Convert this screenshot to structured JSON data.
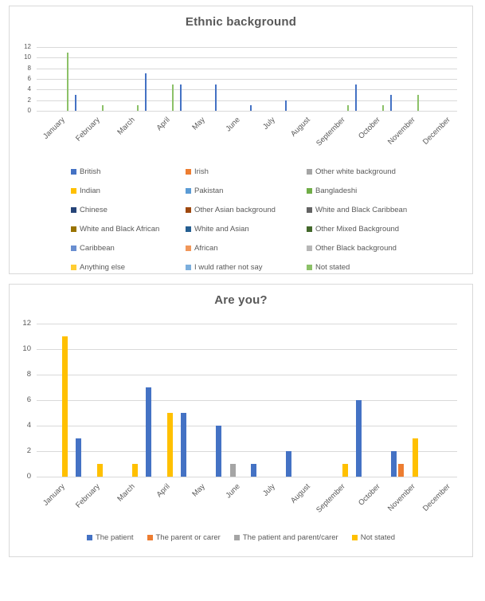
{
  "page": {
    "background": "#ffffff",
    "card_border": "#d9d9d9",
    "grid_color": "#d9d9d9",
    "text_color": "#595959"
  },
  "chart_data": [
    {
      "type": "bar",
      "title": "Ethnic background",
      "categories": [
        "January",
        "February",
        "March",
        "April",
        "May",
        "June",
        "July",
        "August",
        "September",
        "October",
        "November",
        "December"
      ],
      "ylim": [
        0,
        12
      ],
      "yticks": [
        0,
        2,
        4,
        6,
        8,
        10,
        12
      ],
      "grid": true,
      "legend_position": "bottom",
      "legend_columns": 3,
      "series": [
        {
          "name": "British",
          "color": "#4472C4",
          "values": [
            0,
            3,
            0,
            7,
            5,
            5,
            1,
            2,
            0,
            5,
            3,
            0
          ]
        },
        {
          "name": "Irish",
          "color": "#ED7D31",
          "values": [
            0,
            0,
            0,
            0,
            0,
            0,
            0,
            0,
            0,
            0,
            0,
            0
          ]
        },
        {
          "name": "Other white background",
          "color": "#A5A5A5",
          "values": [
            0,
            0,
            0,
            0,
            0,
            0,
            0,
            0,
            0,
            0,
            0,
            0
          ]
        },
        {
          "name": "Indian",
          "color": "#FFC000",
          "values": [
            0,
            0,
            0,
            0,
            0,
            0,
            0,
            0,
            0,
            0,
            0,
            0
          ]
        },
        {
          "name": "Pakistan",
          "color": "#5B9BD5",
          "values": [
            0,
            0,
            0,
            0,
            0,
            0,
            0,
            0,
            0,
            0,
            0,
            0
          ]
        },
        {
          "name": "Bangladeshi",
          "color": "#70AD47",
          "values": [
            0,
            0,
            0,
            0,
            0,
            0,
            0,
            0,
            0,
            0,
            0,
            0
          ]
        },
        {
          "name": "Chinese",
          "color": "#264478",
          "values": [
            0,
            0,
            0,
            0,
            0,
            0,
            0,
            0,
            0,
            0,
            0,
            0
          ]
        },
        {
          "name": "Other Asian background",
          "color": "#9E480E",
          "values": [
            0,
            0,
            0,
            0,
            0,
            0,
            0,
            0,
            0,
            0,
            0,
            0
          ]
        },
        {
          "name": "White and Black Caribbean",
          "color": "#636363",
          "values": [
            0,
            0,
            0,
            0,
            0,
            0,
            0,
            0,
            0,
            0,
            0,
            0
          ]
        },
        {
          "name": "White and Black African",
          "color": "#997300",
          "values": [
            0,
            0,
            0,
            0,
            0,
            0,
            0,
            0,
            0,
            0,
            0,
            0
          ]
        },
        {
          "name": "White and Asian",
          "color": "#255E91",
          "values": [
            0,
            0,
            0,
            0,
            0,
            0,
            0,
            0,
            0,
            0,
            0,
            0
          ]
        },
        {
          "name": "Other Mixed Background",
          "color": "#43682B",
          "values": [
            0,
            0,
            0,
            0,
            0,
            0,
            0,
            0,
            0,
            0,
            0,
            0
          ]
        },
        {
          "name": "Caribbean",
          "color": "#698ED0",
          "values": [
            0,
            0,
            0,
            0,
            0,
            0,
            0,
            0,
            0,
            0,
            0,
            0
          ]
        },
        {
          "name": "African",
          "color": "#F1975A",
          "values": [
            0,
            0,
            0,
            0,
            0,
            0,
            0,
            0,
            0,
            0,
            0,
            0
          ]
        },
        {
          "name": "Other Black background",
          "color": "#B7B7B7",
          "values": [
            0,
            0,
            0,
            0,
            0,
            0,
            0,
            0,
            0,
            0,
            0,
            0
          ]
        },
        {
          "name": "Anything else",
          "color": "#FFCD33",
          "values": [
            0,
            0,
            0,
            0,
            0,
            0,
            0,
            0,
            0,
            0,
            0,
            0
          ]
        },
        {
          "name": "I wuld rather not say",
          "color": "#7CAFDD",
          "values": [
            0,
            0,
            0,
            0,
            0,
            0,
            0,
            0,
            0,
            0,
            0,
            0
          ]
        },
        {
          "name": "Not stated",
          "color": "#8CC168",
          "values": [
            11,
            1,
            1,
            5,
            0,
            0,
            0,
            0,
            1,
            1,
            3,
            0
          ]
        }
      ]
    },
    {
      "type": "bar",
      "title": "Are you?",
      "categories": [
        "January",
        "February",
        "March",
        "April",
        "May",
        "June",
        "July",
        "August",
        "September",
        "October",
        "November",
        "December"
      ],
      "ylim": [
        0,
        12
      ],
      "yticks": [
        0,
        2,
        4,
        6,
        8,
        10,
        12
      ],
      "grid": true,
      "legend_position": "bottom",
      "legend_columns": 4,
      "series": [
        {
          "name": "The patient",
          "color": "#4472C4",
          "values": [
            0,
            3,
            0,
            7,
            5,
            4,
            1,
            2,
            0,
            6,
            2,
            0
          ]
        },
        {
          "name": "The parent or carer",
          "color": "#ED7D31",
          "values": [
            0,
            0,
            0,
            0,
            0,
            0,
            0,
            0,
            0,
            0,
            1,
            0
          ]
        },
        {
          "name": "The patient and parent/carer",
          "color": "#A5A5A5",
          "values": [
            0,
            0,
            0,
            0,
            0,
            1,
            0,
            0,
            0,
            0,
            0,
            0
          ]
        },
        {
          "name": "Not stated",
          "color": "#FFC000",
          "values": [
            11,
            1,
            1,
            5,
            0,
            0,
            0,
            0,
            1,
            0,
            3,
            0
          ]
        }
      ]
    }
  ]
}
